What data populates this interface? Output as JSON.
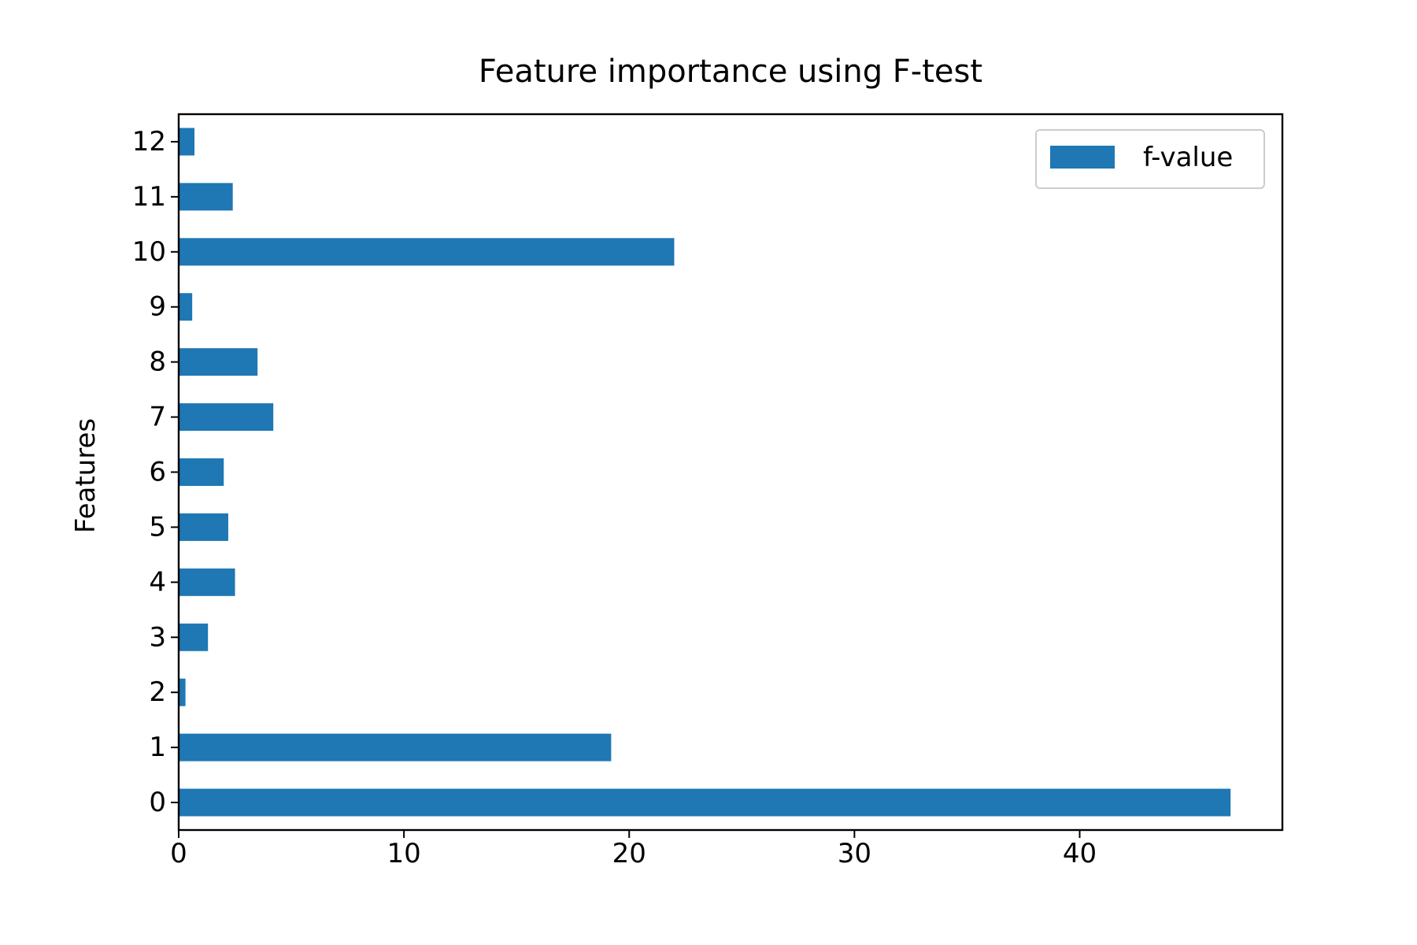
{
  "chart_data": {
    "type": "bar",
    "orientation": "horizontal",
    "title": "Feature importance using F-test",
    "xlabel": "",
    "ylabel": "Features",
    "categories": [
      "0",
      "1",
      "2",
      "3",
      "4",
      "5",
      "6",
      "7",
      "8",
      "9",
      "10",
      "11",
      "12"
    ],
    "series": [
      {
        "name": "f-value",
        "color": "#1f77b4",
        "values": [
          46.7,
          19.2,
          0.3,
          1.3,
          2.5,
          2.2,
          2.0,
          4.2,
          3.5,
          0.6,
          22.0,
          2.4,
          0.7
        ]
      }
    ],
    "xlim": [
      0,
      49
    ],
    "xticks": [
      0,
      10,
      20,
      30,
      40
    ],
    "grid": false,
    "legend_position": "top-right"
  }
}
